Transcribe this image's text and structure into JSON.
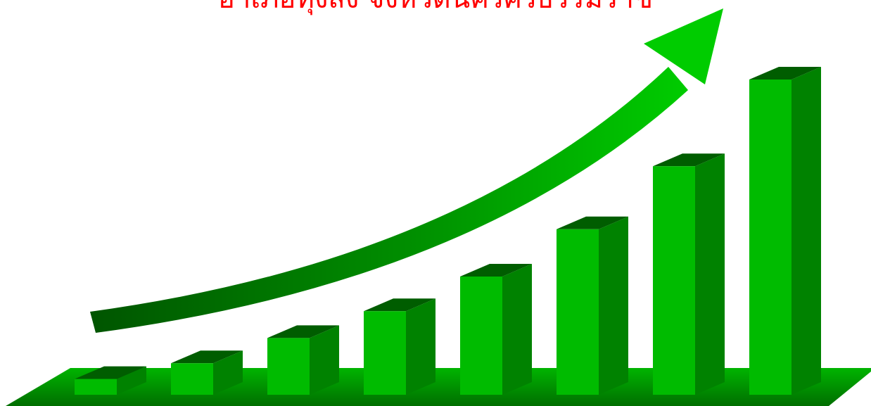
{
  "title": "อำเภอทุ่งสง  จังหวัดนครศรีธรรมราช",
  "colors": {
    "title": "#ff0000",
    "bar_front": "#00bb00",
    "bar_side": "#008200",
    "bar_top": "#005d00",
    "floor_light": "#00b400",
    "floor_dark": "#006e00",
    "arrow_light": "#00cc00",
    "arrow_dark": "#005500"
  },
  "chart_data": {
    "type": "bar",
    "categories": [
      "",
      "",
      "",
      "",
      "",
      "",
      "",
      ""
    ],
    "values": [
      1,
      2,
      3.6,
      5.3,
      7.5,
      10.5,
      14.5,
      20
    ],
    "ylim": [
      0,
      20
    ],
    "grid": false,
    "legend": "none",
    "style": "3d-bars-with-rising-arrow"
  }
}
